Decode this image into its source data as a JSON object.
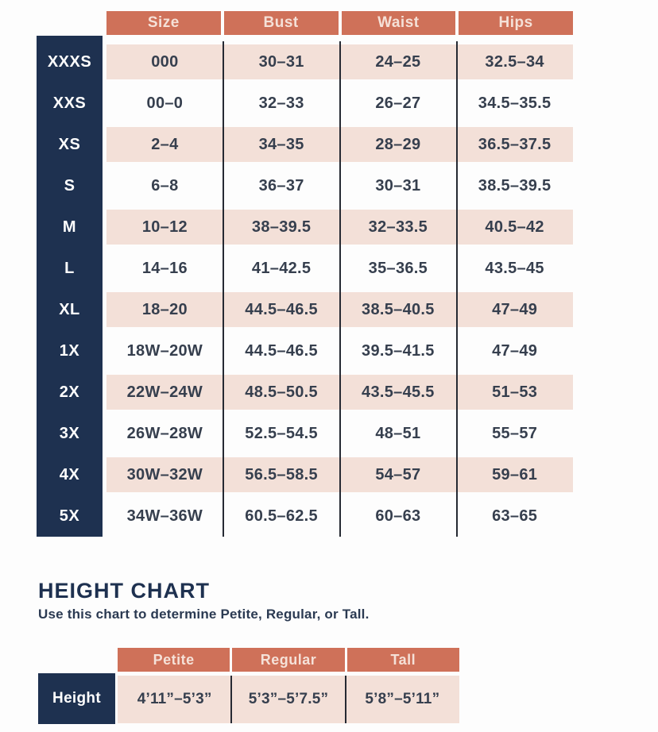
{
  "colors": {
    "salmon": "#CF7159",
    "navy": "#1E3150",
    "pink": "#F3E0D8",
    "text_dark": "#363F4E",
    "header_text": "#F5E1D8",
    "divider_line": "#262A33"
  },
  "chart_data": [
    {
      "type": "table",
      "columns": [
        "Size",
        "Bust",
        "Waist",
        "Hips"
      ],
      "row_labels": [
        "XXXS",
        "XXS",
        "XS",
        "S",
        "M",
        "L",
        "XL",
        "1X",
        "2X",
        "3X",
        "4X",
        "5X"
      ],
      "rows": [
        [
          "000",
          "30–31",
          "24–25",
          "32.5–34"
        ],
        [
          "00–0",
          "32–33",
          "26–27",
          "34.5–35.5"
        ],
        [
          "2–4",
          "34–35",
          "28–29",
          "36.5–37.5"
        ],
        [
          "6–8",
          "36–37",
          "30–31",
          "38.5–39.5"
        ],
        [
          "10–12",
          "38–39.5",
          "32–33.5",
          "40.5–42"
        ],
        [
          "14–16",
          "41–42.5",
          "35–36.5",
          "43.5–45"
        ],
        [
          "18–20",
          "44.5–46.5",
          "38.5–40.5",
          "47–49"
        ],
        [
          "18W–20W",
          "44.5–46.5",
          "39.5–41.5",
          "47–49"
        ],
        [
          "22W–24W",
          "48.5–50.5",
          "43.5–45.5",
          "51–53"
        ],
        [
          "26W–28W",
          "52.5–54.5",
          "48–51",
          "55–57"
        ],
        [
          "30W–32W",
          "56.5–58.5",
          "54–57",
          "59–61"
        ],
        [
          "34W–36W",
          "60.5–62.5",
          "60–63",
          "63–65"
        ]
      ]
    },
    {
      "type": "table",
      "title": "HEIGHT CHART",
      "subtitle": "Use this chart to determine Petite, Regular, or Tall.",
      "columns": [
        "Petite",
        "Regular",
        "Tall"
      ],
      "row_labels": [
        "Height"
      ],
      "rows": [
        [
          "4’11”–5’3”",
          "5’3”–5’7.5”",
          "5’8”–5’11”"
        ]
      ]
    }
  ]
}
